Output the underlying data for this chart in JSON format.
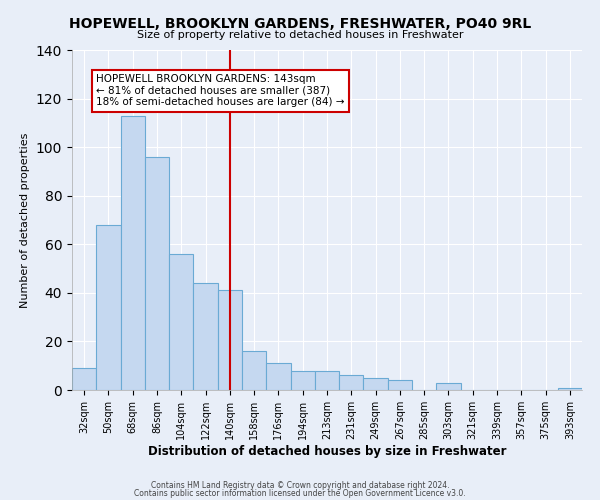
{
  "title": "HOPEWELL, BROOKLYN GARDENS, FRESHWATER, PO40 9RL",
  "subtitle": "Size of property relative to detached houses in Freshwater",
  "xlabel": "Distribution of detached houses by size in Freshwater",
  "ylabel": "Number of detached properties",
  "bar_labels": [
    "32sqm",
    "50sqm",
    "68sqm",
    "86sqm",
    "104sqm",
    "122sqm",
    "140sqm",
    "158sqm",
    "176sqm",
    "194sqm",
    "213sqm",
    "231sqm",
    "249sqm",
    "267sqm",
    "285sqm",
    "303sqm",
    "321sqm",
    "339sqm",
    "357sqm",
    "375sqm",
    "393sqm"
  ],
  "bar_values": [
    9,
    68,
    113,
    96,
    56,
    44,
    41,
    16,
    11,
    8,
    8,
    6,
    5,
    4,
    0,
    3,
    0,
    0,
    0,
    0,
    1
  ],
  "bar_color": "#c5d8f0",
  "bar_edge_color": "#6aaad4",
  "vline_x": 6,
  "vline_color": "#cc0000",
  "annotation_title": "HOPEWELL BROOKLYN GARDENS: 143sqm",
  "annotation_line1": "← 81% of detached houses are smaller (387)",
  "annotation_line2": "18% of semi-detached houses are larger (84) →",
  "annotation_box_color": "#ffffff",
  "annotation_box_edge": "#cc0000",
  "background_color": "#e8eef8",
  "ylim": [
    0,
    140
  ],
  "footer1": "Contains HM Land Registry data © Crown copyright and database right 2024.",
  "footer2": "Contains public sector information licensed under the Open Government Licence v3.0."
}
